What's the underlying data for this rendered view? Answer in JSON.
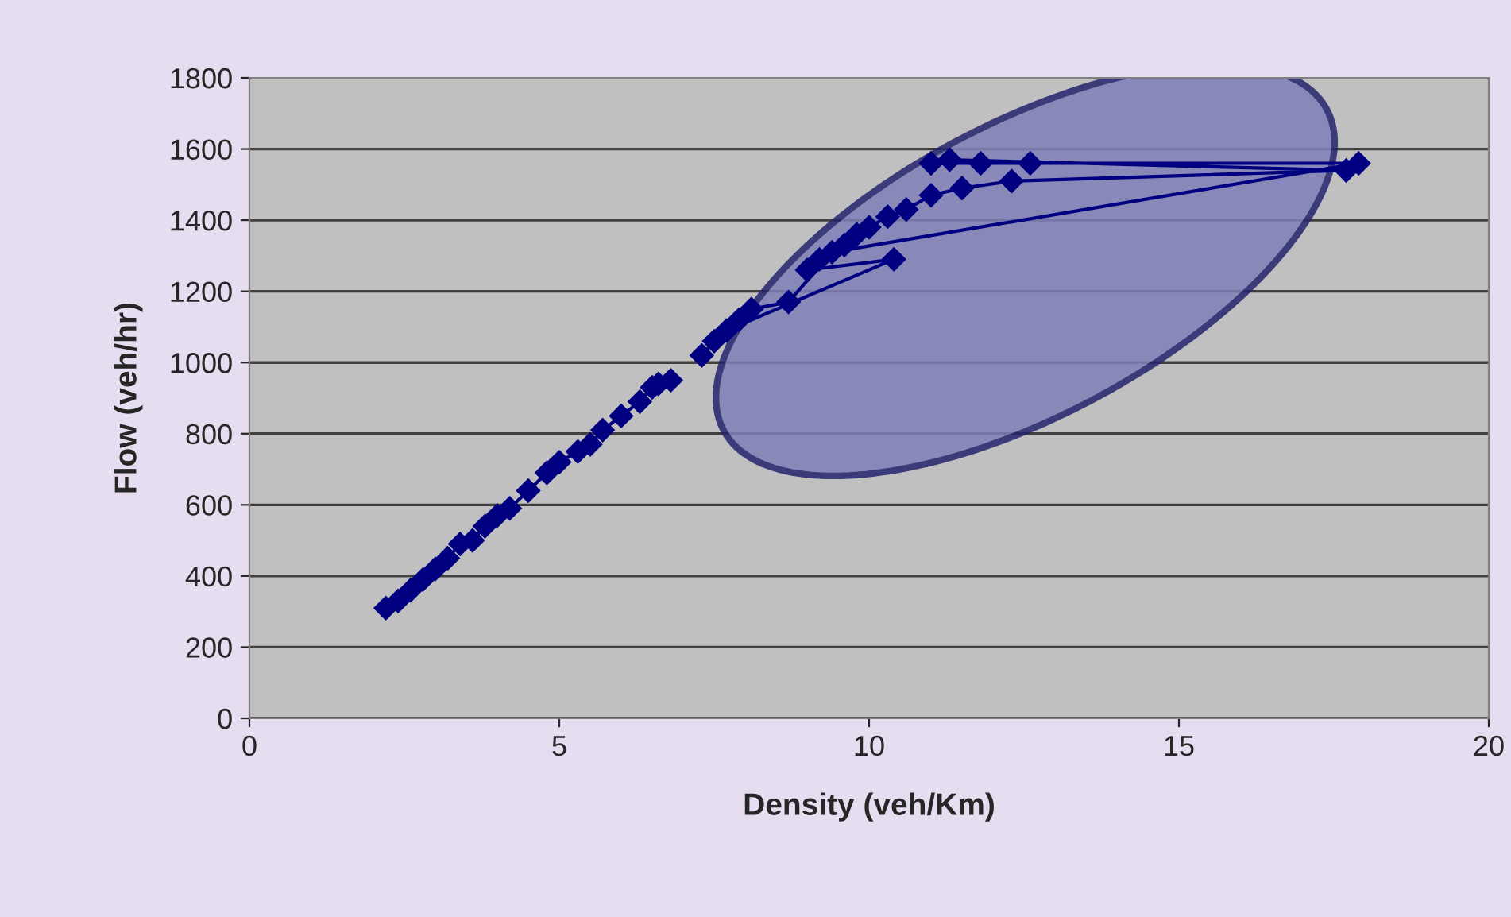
{
  "chart_data": {
    "type": "line",
    "xlabel": "Density (veh/Km)",
    "ylabel": "Flow (veh/hr)",
    "xlim": [
      0,
      20
    ],
    "xticks": [
      0,
      5,
      10,
      15,
      20
    ],
    "ylim": [
      0,
      1800
    ],
    "yticks": [
      0,
      200,
      400,
      600,
      800,
      1000,
      1200,
      1400,
      1600,
      1800
    ],
    "grid": "y",
    "marker": "diamond",
    "line_style": "solid",
    "series": [
      {
        "color": "#000080",
        "x": [
          2.2,
          2.4,
          2.6,
          2.8,
          3.0,
          3.2,
          3.4,
          3.6,
          3.8,
          4.0,
          4.2,
          4.5,
          4.8,
          5.0,
          5.3,
          5.5,
          5.7,
          6.0,
          6.3,
          6.5,
          6.6,
          6.8,
          7.0,
          7.3,
          7.5,
          7.7,
          10.4,
          9.0,
          9.2,
          9.6,
          9.8,
          10.0,
          10.3,
          10.6,
          11.0,
          11.5,
          12.3,
          17.7,
          11.3,
          11.0,
          11.8,
          12.6,
          17.9,
          9.4,
          8.7,
          8.1,
          7.9
        ],
        "values": [
          310,
          330,
          360,
          390,
          420,
          450,
          490,
          500,
          540,
          570,
          590,
          640,
          690,
          720,
          750,
          770,
          810,
          850,
          890,
          930,
          940,
          950,
          null,
          1020,
          1060,
          1090,
          1290,
          1260,
          1290,
          1330,
          1360,
          1380,
          1410,
          1430,
          1470,
          1490,
          1510,
          1540,
          1570,
          1560,
          1560,
          1560,
          1560,
          1310,
          1170,
          1150,
          1120
        ]
      }
    ]
  }
}
